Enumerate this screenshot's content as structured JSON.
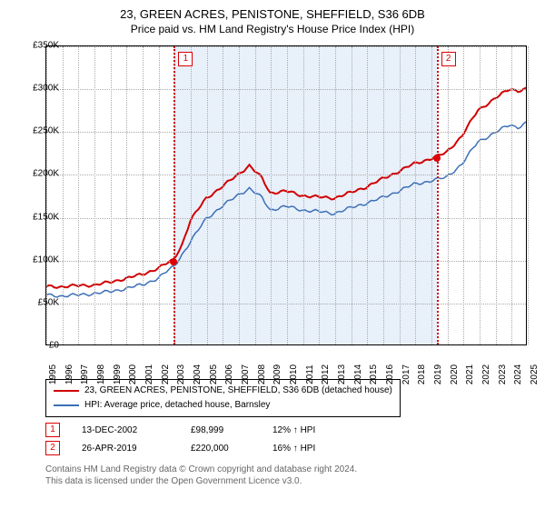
{
  "title": "23, GREEN ACRES, PENISTONE, SHEFFIELD, S36 6DB",
  "subtitle": "Price paid vs. HM Land Registry's House Price Index (HPI)",
  "chart": {
    "type": "line",
    "background_color": "#ffffff",
    "grid_color": "#aaaaaa",
    "border_color": "#000000",
    "ylim": [
      0,
      350000
    ],
    "ytick_step": 50000,
    "yticks": [
      "£0",
      "£50K",
      "£100K",
      "£150K",
      "£200K",
      "£250K",
      "£300K",
      "£350K"
    ],
    "xlim": [
      1995,
      2025
    ],
    "xticks": [
      1995,
      1996,
      1997,
      1998,
      1999,
      2000,
      2001,
      2002,
      2003,
      2004,
      2005,
      2006,
      2007,
      2008,
      2009,
      2010,
      2011,
      2012,
      2013,
      2014,
      2015,
      2016,
      2017,
      2018,
      2019,
      2020,
      2021,
      2022,
      2023,
      2024,
      2025
    ],
    "marker_band_color": "#e8f0fa",
    "marker_line_color": "#d00000",
    "series": {
      "red": {
        "color": "#d00000",
        "width": 2,
        "points": [
          [
            1995,
            68000
          ],
          [
            1996,
            68000
          ],
          [
            1997,
            69000
          ],
          [
            1998,
            70000
          ],
          [
            1999,
            73000
          ],
          [
            2000,
            78000
          ],
          [
            2001,
            82000
          ],
          [
            2002,
            90000
          ],
          [
            2002.95,
            98999
          ],
          [
            2003.5,
            118000
          ],
          [
            2004,
            145000
          ],
          [
            2005,
            172000
          ],
          [
            2006,
            185000
          ],
          [
            2007,
            200000
          ],
          [
            2007.7,
            210000
          ],
          [
            2008.5,
            195000
          ],
          [
            2009,
            178000
          ],
          [
            2010,
            180000
          ],
          [
            2011,
            175000
          ],
          [
            2012,
            173000
          ],
          [
            2013,
            172000
          ],
          [
            2014,
            178000
          ],
          [
            2015,
            185000
          ],
          [
            2016,
            194000
          ],
          [
            2017,
            203000
          ],
          [
            2018,
            212000
          ],
          [
            2019.32,
            220000
          ],
          [
            2020,
            225000
          ],
          [
            2021,
            245000
          ],
          [
            2022,
            275000
          ],
          [
            2023,
            288000
          ],
          [
            2024,
            300000
          ],
          [
            2024.5,
            298000
          ],
          [
            2025,
            300000
          ]
        ]
      },
      "blue": {
        "color": "#3b6fb6",
        "width": 1.5,
        "points": [
          [
            1995,
            58000
          ],
          [
            1996,
            57000
          ],
          [
            1997,
            58000
          ],
          [
            1998,
            60000
          ],
          [
            1999,
            62000
          ],
          [
            2000,
            66000
          ],
          [
            2001,
            70000
          ],
          [
            2002,
            78000
          ],
          [
            2003,
            92000
          ],
          [
            2004,
            120000
          ],
          [
            2005,
            148000
          ],
          [
            2006,
            162000
          ],
          [
            2007,
            176000
          ],
          [
            2007.7,
            183000
          ],
          [
            2008.5,
            172000
          ],
          [
            2009,
            158000
          ],
          [
            2010,
            162000
          ],
          [
            2011,
            158000
          ],
          [
            2012,
            156000
          ],
          [
            2013,
            154000
          ],
          [
            2014,
            160000
          ],
          [
            2015,
            166000
          ],
          [
            2016,
            172000
          ],
          [
            2017,
            180000
          ],
          [
            2018,
            188000
          ],
          [
            2019,
            192000
          ],
          [
            2020,
            196000
          ],
          [
            2021,
            212000
          ],
          [
            2022,
            238000
          ],
          [
            2023,
            248000
          ],
          [
            2024,
            258000
          ],
          [
            2024.5,
            255000
          ],
          [
            2025,
            260000
          ]
        ]
      }
    },
    "markers": [
      {
        "id": "1",
        "x": 2002.95,
        "y": 98999
      },
      {
        "id": "2",
        "x": 2019.32,
        "y": 220000
      }
    ]
  },
  "legend": {
    "items": [
      {
        "color": "#d00000",
        "label": "23, GREEN ACRES, PENISTONE, SHEFFIELD, S36 6DB (detached house)"
      },
      {
        "color": "#3b6fb6",
        "label": "HPI: Average price, detached house, Barnsley"
      }
    ]
  },
  "info_rows": [
    {
      "id": "1",
      "date": "13-DEC-2002",
      "price": "£98,999",
      "pct": "12% ↑ HPI"
    },
    {
      "id": "2",
      "date": "26-APR-2019",
      "price": "£220,000",
      "pct": "16% ↑ HPI"
    }
  ],
  "footer": {
    "line1": "Contains HM Land Registry data © Crown copyright and database right 2024.",
    "line2": "This data is licensed under the Open Government Licence v3.0."
  }
}
